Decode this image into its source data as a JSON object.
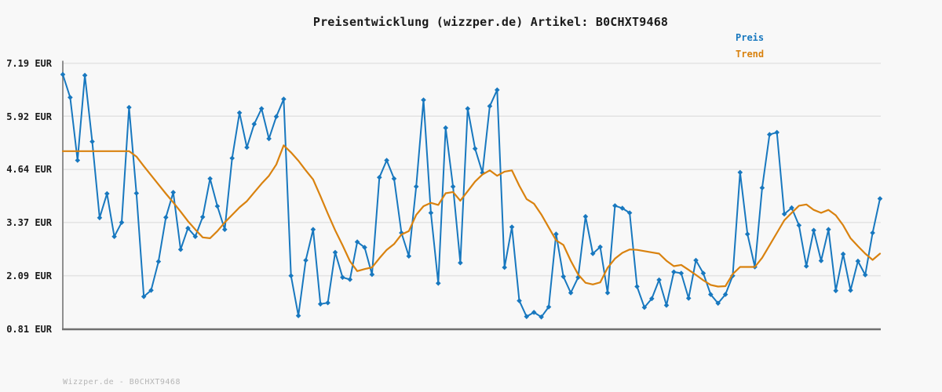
{
  "title": "Preisentwicklung (wizzper.de) Artikel: B0CHXT9468",
  "legend": [
    {
      "label": "Preis",
      "color": "#1878bf"
    },
    {
      "label": "Trend",
      "color": "#d9820f"
    }
  ],
  "footer": {
    "watermark": "Wizzper.de - B0CHXT9468"
  },
  "colors": {
    "background": "#f8f8f8",
    "grid": "#e4e4e4",
    "axis_left": "#8f8f8f",
    "axis_bottom": "#707070",
    "title_text": "#1a1a1a",
    "tick_text": "#1a1a1a",
    "watermark_text": "#b5b5b5",
    "preis": "#1878bf",
    "trend": "#d9820f"
  },
  "chart_data": {
    "type": "line",
    "title": "Preisentwicklung (wizzper.de) Artikel: B0CHXT9468",
    "xlabel": "",
    "ylabel": "",
    "unit": "EUR",
    "ylim": [
      0.81,
      7.19
    ],
    "ytick_labels": [
      "7.19 EUR",
      "5.92 EUR",
      "4.64 EUR",
      "3.37 EUR",
      "2.09 EUR",
      "0.81 EUR"
    ],
    "ytick_values": [
      7.19,
      5.92,
      4.64,
      3.37,
      2.09,
      0.81
    ],
    "x_axis": {
      "tick_labels_visible": false,
      "point_count": 112
    },
    "grid": "horizontal",
    "legend_position": "top-right",
    "series": [
      {
        "name": "Preis",
        "color": "#1878bf",
        "marker": "diamond",
        "line_width": 2,
        "values": [
          6.92,
          6.37,
          4.86,
          6.9,
          5.31,
          3.48,
          4.06,
          3.03,
          3.37,
          6.13,
          4.07,
          1.59,
          1.74,
          2.43,
          3.49,
          4.09,
          2.72,
          3.23,
          3.03,
          3.5,
          4.42,
          3.76,
          3.2,
          4.91,
          6.0,
          5.17,
          5.73,
          6.1,
          5.38,
          5.91,
          6.33,
          2.09,
          1.13,
          2.46,
          3.2,
          1.41,
          1.44,
          2.65,
          2.05,
          2.0,
          2.9,
          2.77,
          2.12,
          4.45,
          4.86,
          4.42,
          3.12,
          2.56,
          4.23,
          6.31,
          3.6,
          1.91,
          5.64,
          4.23,
          2.4,
          6.1,
          5.14,
          4.56,
          6.16,
          6.55,
          2.29,
          3.26,
          1.49,
          1.11,
          1.21,
          1.1,
          1.34,
          3.09,
          2.07,
          1.68,
          2.05,
          3.51,
          2.62,
          2.78,
          1.68,
          3.77,
          3.71,
          3.6,
          1.83,
          1.33,
          1.54,
          1.99,
          1.38,
          2.18,
          2.15,
          1.55,
          2.46,
          2.15,
          1.64,
          1.43,
          1.64,
          2.09,
          4.57,
          3.09,
          2.3,
          4.2,
          5.48,
          5.53,
          3.57,
          3.72,
          3.3,
          2.32,
          3.18,
          2.45,
          3.2,
          1.73,
          2.61,
          1.74,
          2.44,
          2.11,
          3.12,
          3.94
        ]
      },
      {
        "name": "Trend",
        "color": "#d9820f",
        "marker": "none",
        "line_width": 2.2,
        "values": [
          5.08,
          5.08,
          5.08,
          5.08,
          5.08,
          5.08,
          5.08,
          5.08,
          5.08,
          5.08,
          4.95,
          4.72,
          4.5,
          4.28,
          4.06,
          3.85,
          3.63,
          3.4,
          3.2,
          3.01,
          2.99,
          3.16,
          3.37,
          3.55,
          3.73,
          3.88,
          4.09,
          4.3,
          4.49,
          4.76,
          5.22,
          5.05,
          4.85,
          4.62,
          4.4,
          4.0,
          3.58,
          3.18,
          2.82,
          2.44,
          2.2,
          2.25,
          2.29,
          2.51,
          2.71,
          2.85,
          3.08,
          3.16,
          3.55,
          3.76,
          3.84,
          3.79,
          4.07,
          4.1,
          3.89,
          4.12,
          4.35,
          4.52,
          4.62,
          4.49,
          4.59,
          4.62,
          4.25,
          3.93,
          3.82,
          3.56,
          3.25,
          2.94,
          2.83,
          2.45,
          2.12,
          1.92,
          1.88,
          1.93,
          2.28,
          2.5,
          2.64,
          2.72,
          2.71,
          2.68,
          2.65,
          2.62,
          2.45,
          2.32,
          2.35,
          2.23,
          2.11,
          1.98,
          1.87,
          1.83,
          1.84,
          2.13,
          2.3,
          2.3,
          2.3,
          2.52,
          2.82,
          3.12,
          3.42,
          3.6,
          3.77,
          3.8,
          3.67,
          3.6,
          3.67,
          3.54,
          3.3,
          2.99,
          2.8,
          2.62,
          2.47,
          2.62
        ]
      }
    ]
  }
}
